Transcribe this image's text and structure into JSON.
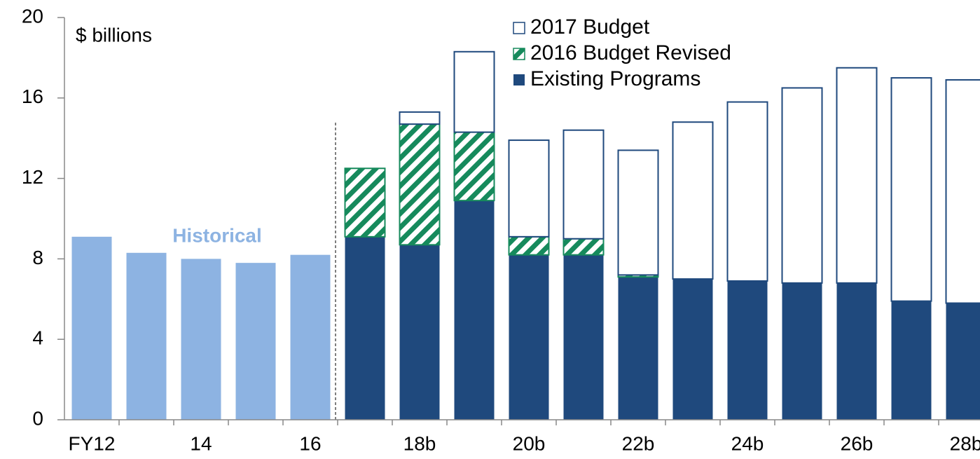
{
  "chart_data": {
    "type": "stacked_bar",
    "unit_label": "$ billions",
    "categories": [
      "FY12",
      null,
      "14",
      null,
      "16",
      null,
      "18b",
      null,
      "20b",
      null,
      "22b",
      null,
      "24b",
      null,
      "26b",
      null,
      "28b"
    ],
    "historical": {
      "label": "Historical",
      "color": "#8db3e2",
      "values": [
        9.1,
        8.3,
        8.0,
        7.8,
        8.2,
        null,
        null,
        null,
        null,
        null,
        null,
        null,
        null,
        null,
        null,
        null,
        null
      ]
    },
    "series": [
      {
        "name": "Existing Programs",
        "color": "#1f497d",
        "style": "solid",
        "values": [
          null,
          null,
          null,
          null,
          null,
          9.1,
          8.7,
          10.9,
          8.2,
          8.2,
          7.1,
          7.0,
          6.9,
          6.8,
          6.8,
          5.9,
          5.8
        ]
      },
      {
        "name": "2016 Budget Revised",
        "color": "#168a5c",
        "style": "hatch",
        "values": [
          null,
          null,
          null,
          null,
          null,
          3.4,
          6.0,
          3.4,
          0.9,
          0.8,
          0.1,
          null,
          null,
          null,
          null,
          null,
          null
        ]
      },
      {
        "name": "2017 Budget",
        "color": "#1f497d",
        "style": "outline",
        "values": [
          null,
          null,
          null,
          null,
          null,
          null,
          0.6,
          4.0,
          4.8,
          5.4,
          6.2,
          7.8,
          8.9,
          9.7,
          10.7,
          11.1,
          11.1
        ]
      }
    ],
    "ylim": [
      0,
      20
    ],
    "yticks": [
      0,
      4,
      8,
      12,
      16,
      20
    ]
  }
}
